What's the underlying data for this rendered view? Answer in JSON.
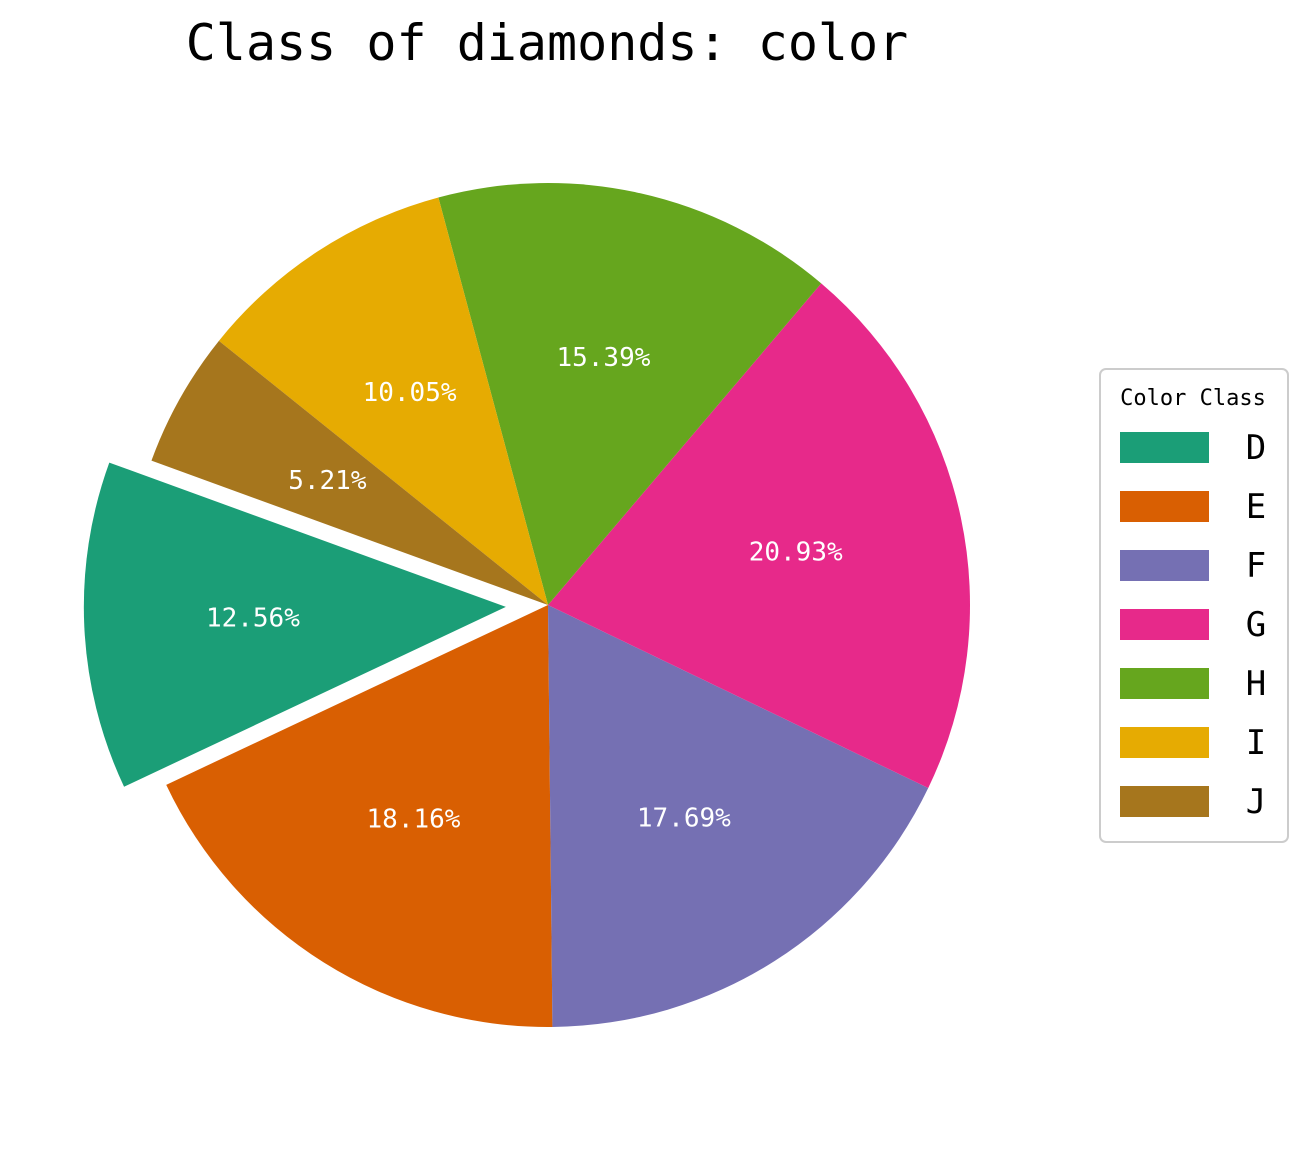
{
  "chart_data": {
    "type": "pie",
    "title": "Class of diamonds: color",
    "categories": [
      "D",
      "E",
      "F",
      "G",
      "H",
      "I",
      "J"
    ],
    "values": [
      12.56,
      18.16,
      17.69,
      20.93,
      15.39,
      10.05,
      5.21
    ],
    "labels": [
      "12.56%",
      "18.16%",
      "17.69%",
      "20.93%",
      "15.39%",
      "10.05%",
      "5.21%"
    ],
    "colors": [
      "#1b9e77",
      "#d95f02",
      "#7570b3",
      "#e7298a",
      "#66a61e",
      "#e6ab02",
      "#a6761d"
    ],
    "explode": [
      0.1,
      0,
      0,
      0,
      0,
      0,
      0
    ],
    "start_angle_deg": 160,
    "direction": "counterclockwise",
    "legend": {
      "title": "Color Class",
      "placement": "center-right",
      "entries": [
        "D",
        "E",
        "F",
        "G",
        "H",
        "I",
        "J"
      ]
    }
  }
}
